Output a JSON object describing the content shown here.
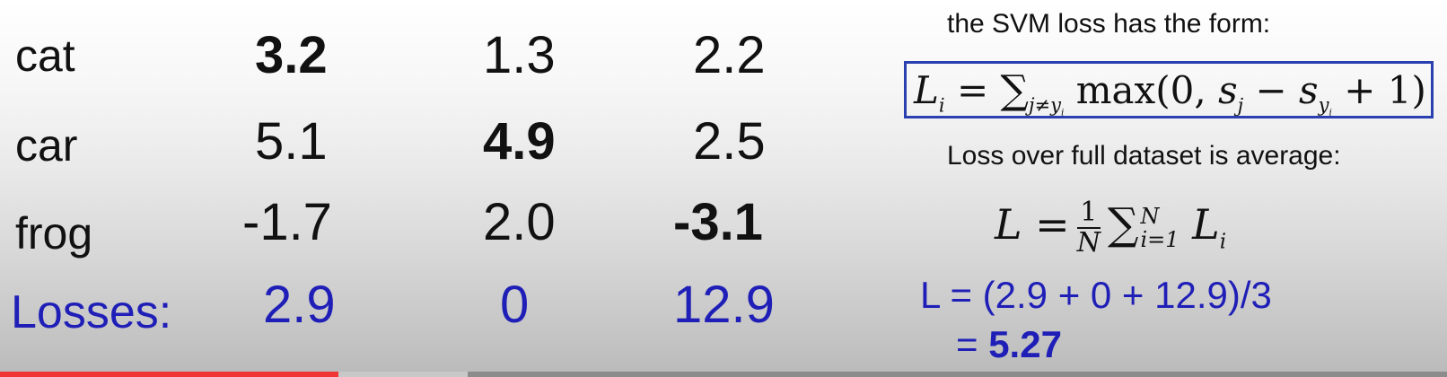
{
  "table": {
    "rows": [
      {
        "label": "cat",
        "scores": [
          "3.2",
          "1.3",
          "2.2"
        ]
      },
      {
        "label": "car",
        "scores": [
          "5.1",
          "4.9",
          "2.5"
        ]
      },
      {
        "label": "frog",
        "scores": [
          "-1.7",
          "2.0",
          "-3.1"
        ]
      }
    ],
    "losses": {
      "label": "Losses:",
      "values": [
        "2.9",
        "0",
        "12.9"
      ]
    }
  },
  "panel": {
    "svm_caption": "the SVM loss has the form:",
    "svm_formula": "L_i = \\sum_{j \\neq y_i} \\max(0, s_j - s_{y_i} + 1)",
    "avg_caption": "Loss over full dataset is average:",
    "avg_formula": "L = \\frac{1}{N} \\sum_{i=1}^{N} L_i",
    "calc_line1": "L = (2.9 + 0 + 12.9)/3",
    "calc_line2_prefix": "= ",
    "calc_result": "5.27"
  },
  "colors": {
    "loss_text": "#1f1fb8",
    "formula_border": "#2a3fb0",
    "progress_played": "#ef3535"
  },
  "progress": {
    "played_fraction": 0.234,
    "buffered_fraction": 0.323
  }
}
